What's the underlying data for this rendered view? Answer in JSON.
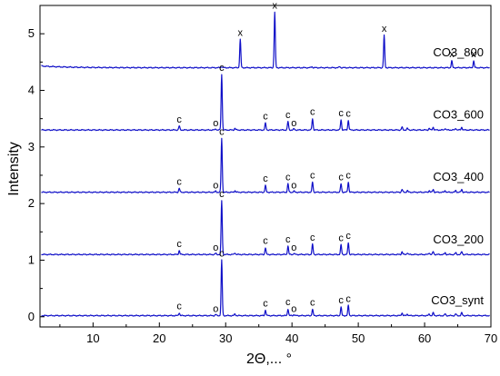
{
  "chart_data": {
    "type": "line",
    "xlabel": "2Θ,... °",
    "ylabel": "Intensity",
    "xlim": [
      2,
      70
    ],
    "ylim": [
      -0.18,
      5.5
    ],
    "x_ticks": [
      "10",
      "20",
      "30",
      "40",
      "50",
      "60",
      "70"
    ],
    "y_ticks": [
      "0",
      "1",
      "2",
      "3",
      "4",
      "5"
    ],
    "grid": false,
    "series_color": "#1010c8",
    "series": [
      {
        "name": "CO3_synt",
        "baseline": 0.02,
        "peaks": [
          {
            "x": 23.0,
            "y": 0.07,
            "label": "c"
          },
          {
            "x": 29.4,
            "y": 1.0,
            "label": "c"
          },
          {
            "x": 36.0,
            "y": 0.12,
            "label": "c"
          },
          {
            "x": 39.4,
            "y": 0.14,
            "label": "c"
          },
          {
            "x": 43.1,
            "y": 0.13,
            "label": "c"
          },
          {
            "x": 47.4,
            "y": 0.17,
            "label": "c"
          },
          {
            "x": 48.5,
            "y": 0.2,
            "label": "c"
          }
        ],
        "minor_markers": [
          {
            "x": 28.5,
            "label": "o"
          },
          {
            "x": 40.3,
            "label": "o"
          }
        ]
      },
      {
        "name": "CO3_200",
        "baseline": 1.1,
        "peaks": [
          {
            "x": 23.0,
            "y": 1.17,
            "label": "c"
          },
          {
            "x": 29.4,
            "y": 2.05,
            "label": "c"
          },
          {
            "x": 36.0,
            "y": 1.22,
            "label": "c"
          },
          {
            "x": 39.4,
            "y": 1.25,
            "label": "c"
          },
          {
            "x": 43.1,
            "y": 1.28,
            "label": "c"
          },
          {
            "x": 47.4,
            "y": 1.27,
            "label": "c"
          },
          {
            "x": 48.5,
            "y": 1.31,
            "label": "c"
          }
        ],
        "minor_markers": [
          {
            "x": 28.5,
            "label": "o"
          },
          {
            "x": 40.3,
            "label": "o"
          }
        ]
      },
      {
        "name": "CO3_400",
        "baseline": 2.2,
        "peaks": [
          {
            "x": 23.0,
            "y": 2.27,
            "label": "c"
          },
          {
            "x": 29.4,
            "y": 3.15,
            "label": "c"
          },
          {
            "x": 36.0,
            "y": 2.32,
            "label": "c"
          },
          {
            "x": 39.4,
            "y": 2.35,
            "label": "c"
          },
          {
            "x": 43.1,
            "y": 2.38,
            "label": "c"
          },
          {
            "x": 47.4,
            "y": 2.35,
            "label": "c"
          },
          {
            "x": 48.5,
            "y": 2.38,
            "label": "c"
          }
        ],
        "minor_markers": [
          {
            "x": 28.5,
            "label": "o"
          },
          {
            "x": 40.3,
            "label": "o"
          }
        ]
      },
      {
        "name": "CO3_600",
        "baseline": 3.3,
        "peaks": [
          {
            "x": 23.0,
            "y": 3.37,
            "label": "c"
          },
          {
            "x": 29.4,
            "y": 4.28,
            "label": "c"
          },
          {
            "x": 36.0,
            "y": 3.42,
            "label": "c"
          },
          {
            "x": 39.4,
            "y": 3.45,
            "label": "c"
          },
          {
            "x": 43.1,
            "y": 3.5,
            "label": "c"
          },
          {
            "x": 47.4,
            "y": 3.48,
            "label": "c"
          },
          {
            "x": 48.5,
            "y": 3.47,
            "label": "c"
          }
        ],
        "minor_markers": [
          {
            "x": 28.5,
            "label": "o"
          },
          {
            "x": 40.3,
            "label": "o"
          }
        ]
      },
      {
        "name": "CO3_800",
        "baseline": 4.4,
        "peaks": [
          {
            "x": 32.2,
            "y": 4.9,
            "label": "x"
          },
          {
            "x": 37.4,
            "y": 5.38,
            "label": "x"
          },
          {
            "x": 53.9,
            "y": 4.97,
            "label": "x"
          },
          {
            "x": 64.1,
            "y": 4.52,
            "label": "x"
          },
          {
            "x": 67.4,
            "y": 4.52,
            "label": "x"
          }
        ],
        "minor_markers": []
      }
    ]
  }
}
